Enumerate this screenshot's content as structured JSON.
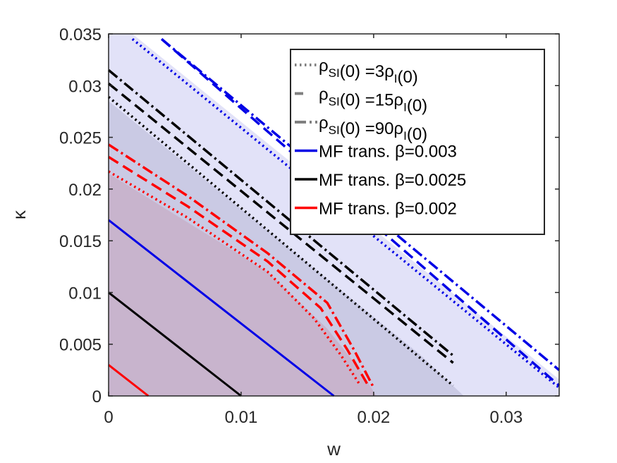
{
  "chart_data": {
    "type": "line",
    "title": "",
    "xlabel": "w",
    "ylabel": "κ",
    "xlim": [
      0,
      0.034
    ],
    "ylim": [
      0,
      0.035
    ],
    "xticks": [
      "0",
      "0.01",
      "0.02",
      "0.03"
    ],
    "xtick_values": [
      0,
      0.01,
      0.02,
      0.03
    ],
    "yticks": [
      "0",
      "0.005",
      "0.01",
      "0.015",
      "0.02",
      "0.025",
      "0.03",
      "0.035"
    ],
    "ytick_values": [
      0,
      0.005,
      0.01,
      0.015,
      0.02,
      0.025,
      0.03,
      0.035
    ],
    "grid": false,
    "legend_position": "top-right",
    "colors": {
      "beta_0003": "#0000e6",
      "beta_00025": "#000000",
      "beta_0002": "#ff0000",
      "legend_gray": "#808080",
      "region_0003": "#e2e2f8",
      "region_00025": "#cacae4",
      "region_0002": "#c8b4cd"
    },
    "legend": [
      {
        "style": "dotted",
        "prefix": "ρ",
        "sub1": "SI",
        "mid": "(0) =3ρ",
        "sub2": "I",
        "suffix": "(0)"
      },
      {
        "style": "dashed",
        "prefix": "ρ",
        "sub1": "SI",
        "mid": "(0) =15ρ",
        "sub2": "I",
        "suffix": "(0)"
      },
      {
        "style": "dashdot",
        "prefix": "ρ",
        "sub1": "SI",
        "mid": "(0) =90ρ",
        "sub2": "I",
        "suffix": "(0)"
      },
      {
        "style": "solid",
        "color": "#0000e6",
        "label": "MF trans. β=0.003"
      },
      {
        "style": "solid",
        "color": "#000000",
        "label": "MF trans. β=0.0025"
      },
      {
        "style": "solid",
        "color": "#ff0000",
        "label": "MF trans. β=0.002"
      }
    ],
    "regions": [
      {
        "name": "region-beta-0003",
        "color": "#e2e2f8",
        "points": [
          [
            0,
            0.035
          ],
          [
            0.0018,
            0.035
          ],
          [
            0.034,
            0.0016
          ],
          [
            0.034,
            0
          ],
          [
            0,
            0
          ]
        ]
      },
      {
        "name": "region-beta-00025",
        "color": "#cacae4",
        "points": [
          [
            0,
            0.0285
          ],
          [
            0.0235,
            0.004
          ],
          [
            0.0268,
            0
          ],
          [
            0,
            0
          ]
        ]
      },
      {
        "name": "region-beta-0002",
        "color": "#c8b4cd",
        "points": [
          [
            0,
            0.0215
          ],
          [
            0.012,
            0.012
          ],
          [
            0.0165,
            0.0065
          ],
          [
            0.019,
            0.0025
          ],
          [
            0.0202,
            0
          ],
          [
            0,
            0
          ]
        ]
      }
    ],
    "series": [
      {
        "name": "MF trans. β=0.003",
        "color": "#0000e6",
        "style": "solid",
        "x": [
          0,
          0.017
        ],
        "y": [
          0.017,
          0
        ]
      },
      {
        "name": "MF trans. β=0.0025",
        "color": "#000000",
        "style": "solid",
        "x": [
          0,
          0.01
        ],
        "y": [
          0.01,
          0
        ]
      },
      {
        "name": "MF trans. β=0.002",
        "color": "#ff0000",
        "style": "solid",
        "x": [
          0,
          0.003
        ],
        "y": [
          0.003,
          0
        ]
      },
      {
        "name": "ρSI(0) =3ρI(0)",
        "color": "#0000e6",
        "style": "dotted",
        "x": [
          0.0018,
          0.034
        ],
        "y": [
          0.0345,
          0.0008
        ]
      },
      {
        "name": "ρSI(0) =15ρI(0)",
        "color": "#0000e6",
        "style": "dashed",
        "x": [
          0.004,
          0.034
        ],
        "y": [
          0.0345,
          0.001
        ]
      },
      {
        "name": "ρSI(0) =90ρI(0)",
        "color": "#0000e6",
        "style": "dashdot",
        "x": [
          0.004,
          0.034
        ],
        "y": [
          0.0345,
          0.0025
        ]
      },
      {
        "name": "ρSI(0) =3ρI(0)",
        "color": "#000000",
        "style": "dotted",
        "x": [
          0,
          0.026
        ],
        "y": [
          0.0289,
          0.001
        ]
      },
      {
        "name": "ρSI(0) =15ρI(0)",
        "color": "#000000",
        "style": "dashed",
        "x": [
          0,
          0.026
        ],
        "y": [
          0.0302,
          0.0032
        ]
      },
      {
        "name": "ρSI(0) =90ρI(0)",
        "color": "#000000",
        "style": "dashdot",
        "x": [
          0,
          0.026
        ],
        "y": [
          0.0315,
          0.0039
        ]
      },
      {
        "name": "ρSI(0) =3ρI(0)",
        "color": "#ff0000",
        "style": "dotted",
        "x": [
          0,
          0.006,
          0.012,
          0.0155,
          0.0175,
          0.019
        ],
        "y": [
          0.0217,
          0.0172,
          0.012,
          0.0075,
          0.004,
          0.001
        ]
      },
      {
        "name": "ρSI(0) =15ρI(0)",
        "color": "#ff0000",
        "style": "dashed",
        "x": [
          0,
          0.006,
          0.012,
          0.016,
          0.018,
          0.0195
        ],
        "y": [
          0.0231,
          0.0183,
          0.013,
          0.0085,
          0.0045,
          0.0012
        ]
      },
      {
        "name": "ρSI(0) =90ρI(0)",
        "color": "#ff0000",
        "style": "dashdot",
        "x": [
          0,
          0.006,
          0.012,
          0.0165,
          0.0185,
          0.02
        ],
        "y": [
          0.0243,
          0.0193,
          0.0138,
          0.009,
          0.0045,
          0.0008
        ]
      }
    ]
  }
}
